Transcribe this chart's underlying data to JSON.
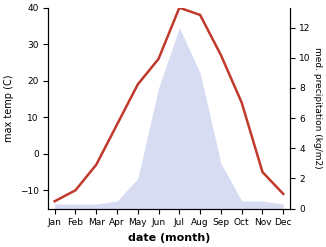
{
  "months": [
    "Jan",
    "Feb",
    "Mar",
    "Apr",
    "May",
    "Jun",
    "Jul",
    "Aug",
    "Sep",
    "Oct",
    "Nov",
    "Dec"
  ],
  "temperature": [
    -13,
    -10,
    -3,
    8,
    19,
    26,
    40,
    38,
    27,
    14,
    -5,
    -11
  ],
  "precipitation": [
    0.3,
    0.3,
    0.3,
    0.5,
    2.0,
    8.0,
    12.0,
    9.0,
    3.0,
    0.5,
    0.5,
    0.3
  ],
  "temp_color": "#c0392b",
  "precip_fill_color": "#b8c0e8",
  "temp_ylim": [
    -15,
    40
  ],
  "precip_ylim": [
    0,
    13.33
  ],
  "xlabel": "date (month)",
  "ylabel_left": "max temp (C)",
  "ylabel_right": "med. precipitation (kg/m2)",
  "right_yticks": [
    0,
    2,
    4,
    6,
    8,
    10,
    12
  ],
  "left_yticks": [
    -10,
    0,
    10,
    20,
    30,
    40
  ],
  "fig_width": 3.26,
  "fig_height": 2.47,
  "dpi": 100
}
